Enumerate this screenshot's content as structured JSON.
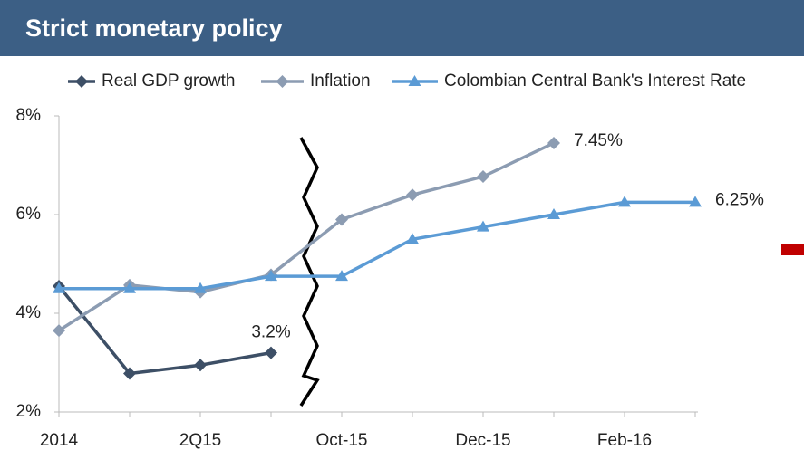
{
  "chart_data": {
    "type": "line",
    "title": "Strict monetary policy",
    "categories": [
      "2014",
      null,
      "2Q15",
      null,
      "Oct-15",
      null,
      "Dec-15",
      null,
      "Feb-16",
      null
    ],
    "series": [
      {
        "name": "Real GDP growth",
        "color": "#3d4f66",
        "marker": "diamond",
        "values": [
          4.55,
          2.78,
          2.95,
          3.2,
          null,
          null,
          null,
          null,
          null,
          null
        ],
        "value_labels": [
          null,
          null,
          null,
          "3.2%",
          null,
          null,
          null,
          null,
          null,
          null
        ]
      },
      {
        "name": "Inflation",
        "color": "#8c9cb2",
        "marker": "diamond",
        "values": [
          3.65,
          4.57,
          4.43,
          4.78,
          5.9,
          6.4,
          6.77,
          7.45,
          null,
          null
        ],
        "value_labels": [
          null,
          null,
          null,
          null,
          null,
          null,
          null,
          "7.45%",
          null,
          null
        ]
      },
      {
        "name": "Colombian Central Bank's Interest Rate",
        "color": "#5b9bd5",
        "marker": "triangle",
        "values": [
          4.5,
          4.5,
          4.5,
          4.75,
          4.75,
          5.5,
          5.75,
          6.0,
          6.25,
          6.25
        ],
        "value_labels": [
          null,
          null,
          null,
          null,
          null,
          null,
          null,
          null,
          null,
          "6.25%"
        ]
      }
    ],
    "ylim": [
      2,
      8
    ],
    "yticks": [
      {
        "value": 2,
        "label": "2%"
      },
      {
        "value": 4,
        "label": "4%"
      },
      {
        "value": 6,
        "label": "6%"
      },
      {
        "value": 8,
        "label": "8%"
      }
    ],
    "grid": false,
    "legend": "top"
  }
}
